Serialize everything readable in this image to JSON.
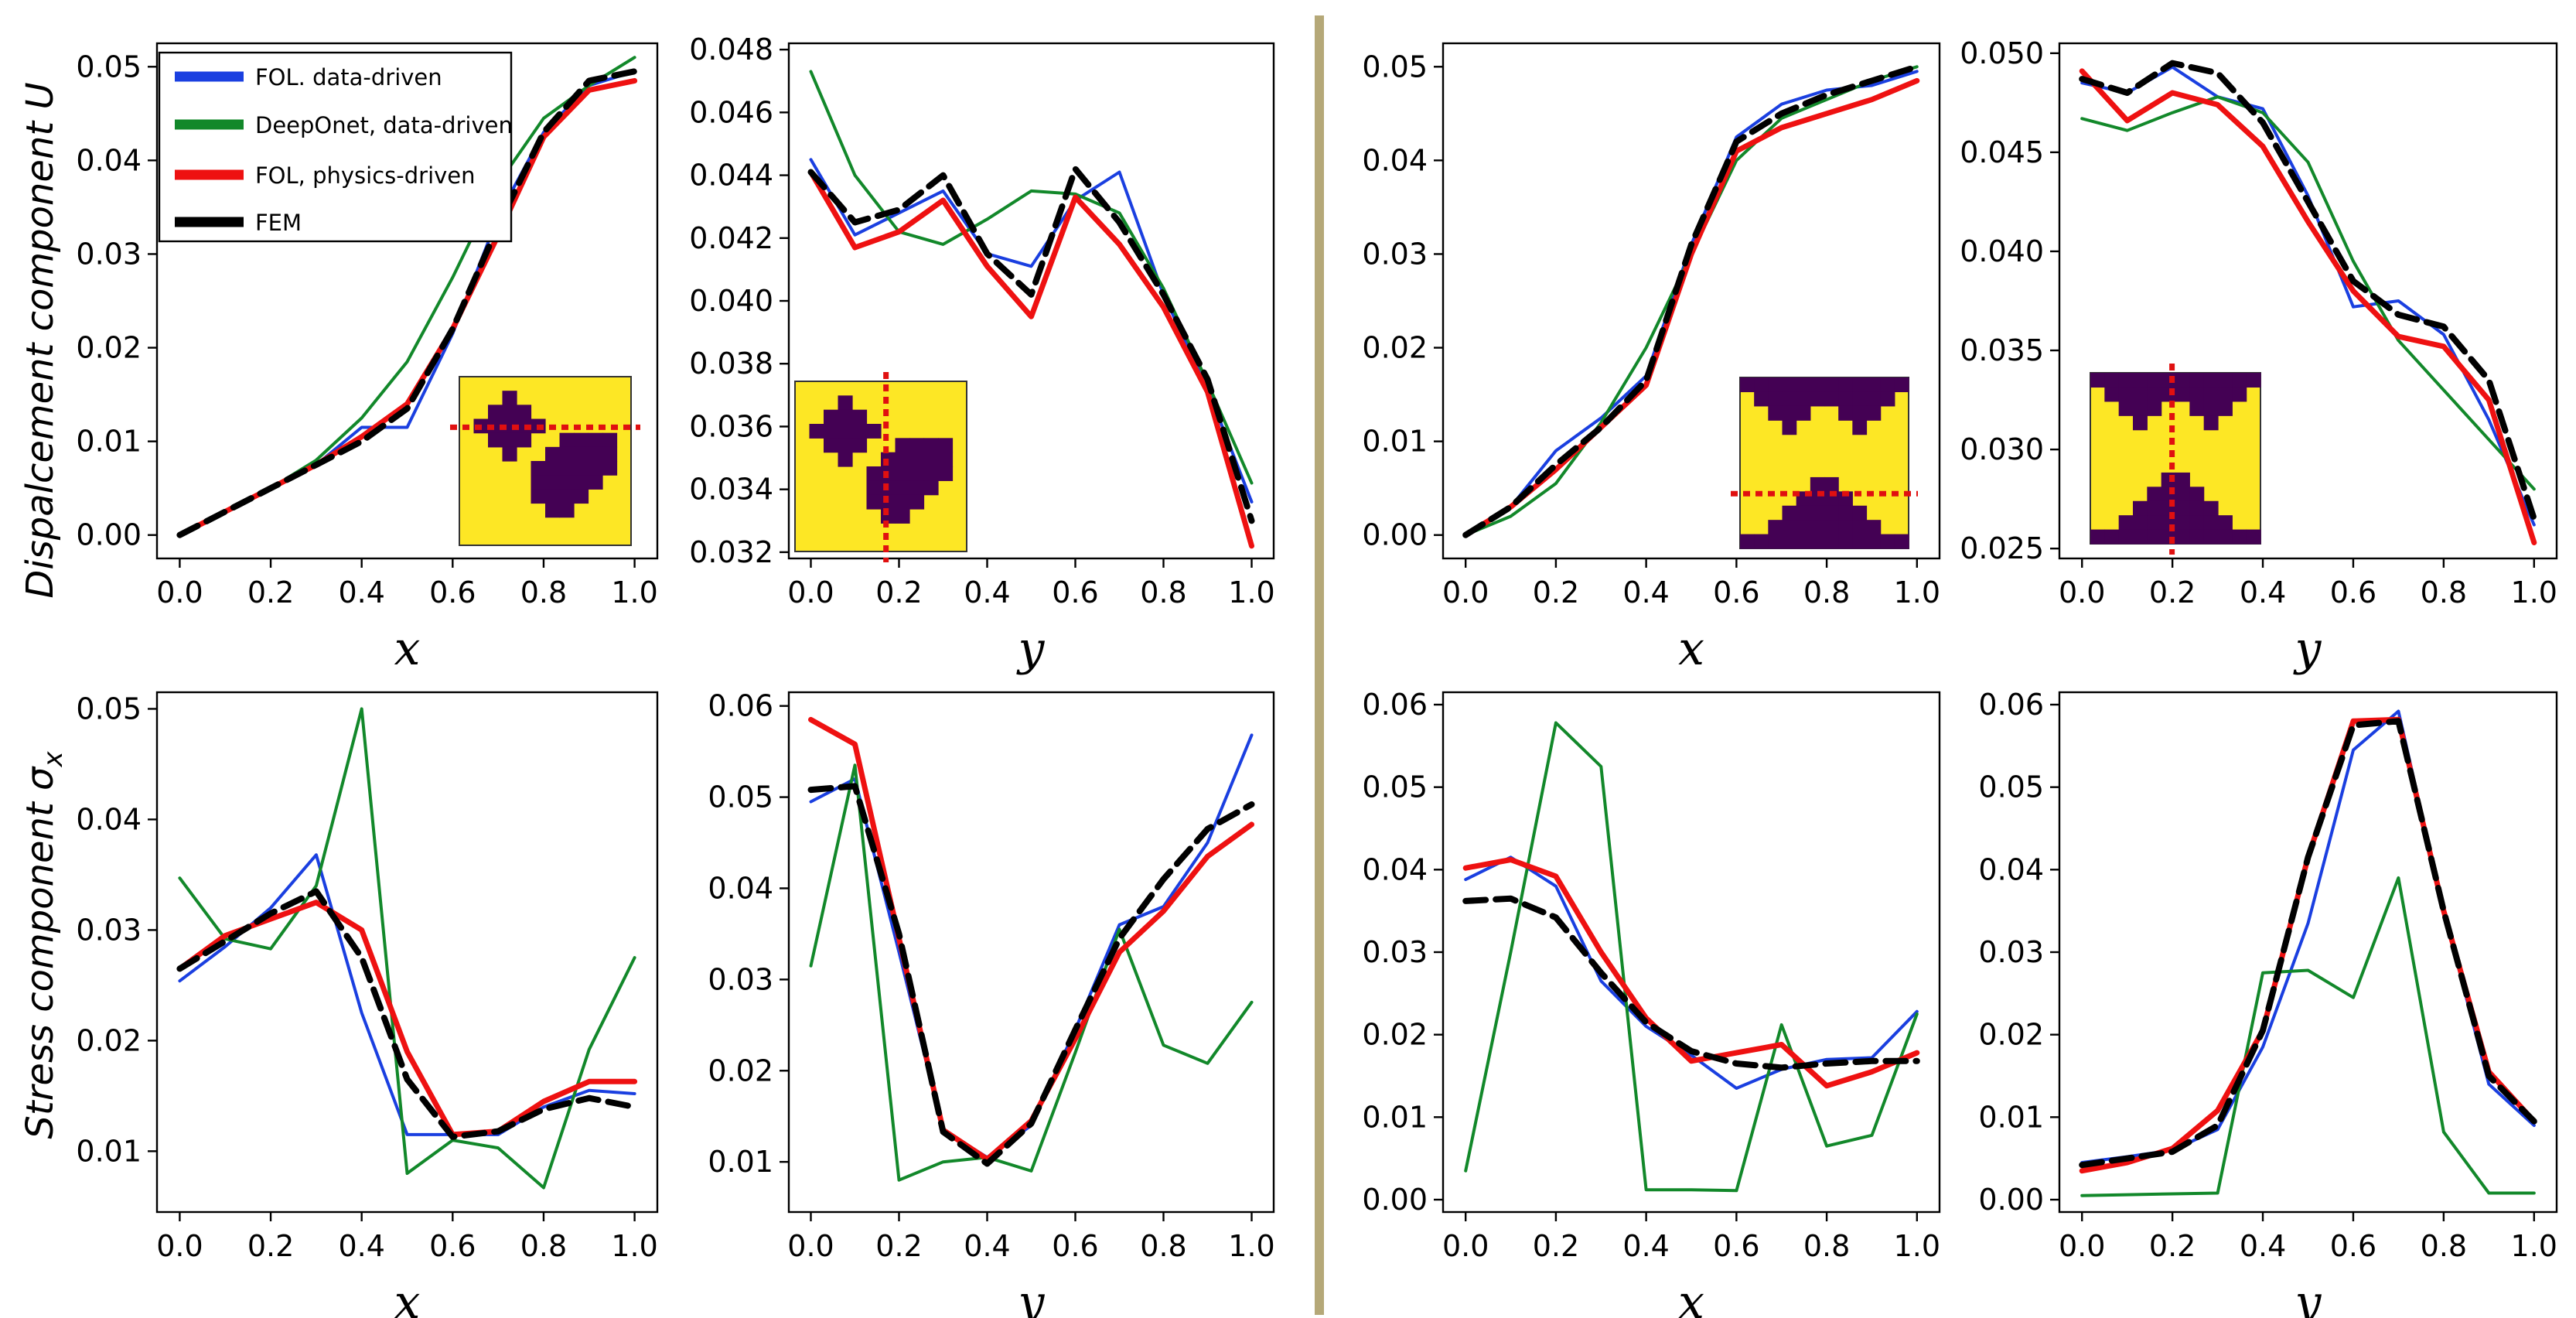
{
  "row_labels": {
    "top": "Dispalcement component U",
    "bottom_prefix": "Stress component σ",
    "bottom_subscript": "x"
  },
  "legend": [
    {
      "label": "FOL. data-driven",
      "color": "#1a3fe0"
    },
    {
      "label": "DeepOnet, data-driven",
      "color": "#12882a"
    },
    {
      "label": "FOL, physics-driven",
      "color": "#ee1111"
    },
    {
      "label": "FEM",
      "color": "#000000"
    }
  ],
  "colors": {
    "fol_data": "#1a3fe0",
    "deeponet": "#12882a",
    "fol_physics": "#ee1111",
    "fem": "#000000",
    "divider": "#b5a878",
    "inset_yellow": "#fde725",
    "inset_purple": "#440154",
    "inset_cut": "#e01010"
  },
  "chart_data": [
    {
      "type": "line",
      "id": "u-x-1",
      "xlabel": "x",
      "ylabel": "Dispalcement component U",
      "xlim": [
        -0.05,
        1.05
      ],
      "ylim": [
        -0.0025,
        0.0525
      ],
      "xticks": [
        "0.0",
        "0.2",
        "0.4",
        "0.6",
        "0.8",
        "1.0"
      ],
      "yticks": [
        "0.00",
        "0.01",
        "0.02",
        "0.03",
        "0.04",
        "0.05"
      ],
      "x": [
        0,
        0.1,
        0.2,
        0.3,
        0.4,
        0.5,
        0.6,
        0.7,
        0.8,
        0.9,
        1.0
      ],
      "series": [
        {
          "name": "FOL. data-driven",
          "values": [
            0,
            0.0025,
            0.005,
            0.0075,
            0.0115,
            0.0115,
            0.0215,
            0.034,
            0.043,
            0.048,
            0.0495
          ]
        },
        {
          "name": "DeepOnet, data-driven",
          "values": [
            0,
            0.0025,
            0.005,
            0.008,
            0.0125,
            0.0185,
            0.0275,
            0.0375,
            0.0445,
            0.048,
            0.051
          ]
        },
        {
          "name": "FOL, physics-driven",
          "values": [
            0,
            0.0025,
            0.005,
            0.0075,
            0.0105,
            0.014,
            0.022,
            0.032,
            0.0425,
            0.0475,
            0.0485
          ]
        },
        {
          "name": "FEM",
          "values": [
            0,
            0.0025,
            0.005,
            0.0075,
            0.01,
            0.0135,
            0.022,
            0.033,
            0.043,
            0.0485,
            0.0495
          ]
        }
      ],
      "inset": {
        "type": "circles",
        "cut": "horizontal",
        "cut_position": 0.3
      }
    },
    {
      "type": "line",
      "id": "u-y-1",
      "xlabel": "y",
      "ylabel": "",
      "xlim": [
        -0.05,
        1.05
      ],
      "ylim": [
        0.0318,
        0.0482
      ],
      "xticks": [
        "0.0",
        "0.2",
        "0.4",
        "0.6",
        "0.8",
        "1.0"
      ],
      "yticks": [
        "0.032",
        "0.034",
        "0.036",
        "0.038",
        "0.040",
        "0.042",
        "0.044",
        "0.046",
        "0.048"
      ],
      "x": [
        0,
        0.1,
        0.2,
        0.3,
        0.4,
        0.5,
        0.6,
        0.7,
        0.8,
        0.9,
        1.0
      ],
      "series": [
        {
          "name": "FOL. data-driven",
          "values": [
            0.0445,
            0.0421,
            0.0428,
            0.0435,
            0.0415,
            0.0411,
            0.0432,
            0.0441,
            0.0402,
            0.0372,
            0.0336
          ]
        },
        {
          "name": "DeepOnet, data-driven",
          "values": [
            0.0473,
            0.044,
            0.0422,
            0.0418,
            0.0426,
            0.0435,
            0.0434,
            0.0428,
            0.0404,
            0.0374,
            0.0342
          ]
        },
        {
          "name": "FOL, physics-driven",
          "values": [
            0.0441,
            0.0417,
            0.0422,
            0.0432,
            0.0411,
            0.0395,
            0.0433,
            0.0418,
            0.0398,
            0.0371,
            0.0322
          ]
        },
        {
          "name": "FEM",
          "values": [
            0.0441,
            0.0425,
            0.0429,
            0.044,
            0.0415,
            0.0402,
            0.0442,
            0.0425,
            0.0402,
            0.0375,
            0.033
          ]
        }
      ],
      "inset": {
        "type": "circles",
        "cut": "vertical",
        "cut_position": 0.78
      }
    },
    {
      "type": "line",
      "id": "u-x-2",
      "xlabel": "x",
      "ylabel": "",
      "xlim": [
        -0.05,
        1.05
      ],
      "ylim": [
        -0.0025,
        0.0525
      ],
      "xticks": [
        "0.0",
        "0.2",
        "0.4",
        "0.6",
        "0.8",
        "1.0"
      ],
      "yticks": [
        "0.00",
        "0.01",
        "0.02",
        "0.03",
        "0.04",
        "0.05"
      ],
      "x": [
        0,
        0.1,
        0.2,
        0.3,
        0.4,
        0.5,
        0.6,
        0.7,
        0.8,
        0.9,
        1.0
      ],
      "series": [
        {
          "name": "FOL. data-driven",
          "values": [
            0,
            0.003,
            0.009,
            0.0125,
            0.017,
            0.031,
            0.0425,
            0.046,
            0.0475,
            0.048,
            0.0495
          ]
        },
        {
          "name": "DeepOnet, data-driven",
          "values": [
            0,
            0.002,
            0.0055,
            0.012,
            0.02,
            0.03,
            0.04,
            0.0445,
            0.0465,
            0.0485,
            0.05
          ]
        },
        {
          "name": "FOL, physics-driven",
          "values": [
            0,
            0.003,
            0.007,
            0.0115,
            0.016,
            0.03,
            0.041,
            0.0435,
            0.045,
            0.0465,
            0.0485
          ]
        },
        {
          "name": "FEM",
          "values": [
            0,
            0.003,
            0.0075,
            0.0115,
            0.0165,
            0.031,
            0.042,
            0.045,
            0.047,
            0.0485,
            0.05
          ]
        }
      ],
      "inset": {
        "type": "bowtie",
        "cut": "horizontal",
        "cut_position": 0.68
      }
    },
    {
      "type": "line",
      "id": "u-y-2",
      "xlabel": "y",
      "ylabel": "",
      "xlim": [
        -0.05,
        1.05
      ],
      "ylim": [
        0.0245,
        0.0505
      ],
      "xticks": [
        "0.0",
        "0.2",
        "0.4",
        "0.6",
        "0.8",
        "1.0"
      ],
      "yticks": [
        "0.025",
        "0.030",
        "0.035",
        "0.040",
        "0.045",
        "0.050"
      ],
      "x": [
        0,
        0.1,
        0.2,
        0.3,
        0.4,
        0.5,
        0.6,
        0.7,
        0.8,
        0.9,
        1.0
      ],
      "series": [
        {
          "name": "FOL. data-driven",
          "values": [
            0.0485,
            0.048,
            0.0493,
            0.0478,
            0.0472,
            0.0428,
            0.0372,
            0.0375,
            0.0358,
            0.0315,
            0.0262
          ]
        },
        {
          "name": "DeepOnet, data-driven",
          "values": [
            0.0467,
            0.0461,
            0.047,
            0.0478,
            0.047,
            0.0445,
            0.0395,
            0.0355,
            0.033,
            0.0305,
            0.028
          ]
        },
        {
          "name": "FOL, physics-driven",
          "values": [
            0.0491,
            0.0466,
            0.048,
            0.0474,
            0.0453,
            0.0415,
            0.038,
            0.0357,
            0.0352,
            0.0325,
            0.0253
          ]
        },
        {
          "name": "FEM",
          "values": [
            0.0487,
            0.048,
            0.0495,
            0.049,
            0.0465,
            0.0425,
            0.0385,
            0.0368,
            0.0362,
            0.0335,
            0.0265
          ]
        }
      ],
      "inset": {
        "type": "bowtie",
        "cut": "vertical",
        "cut_position": 0.73
      }
    },
    {
      "type": "line",
      "id": "s-x-1",
      "xlabel": "x",
      "ylabel": "Stress component σx",
      "xlim": [
        -0.05,
        1.05
      ],
      "ylim": [
        0.0045,
        0.0515
      ],
      "xticks": [
        "0.0",
        "0.2",
        "0.4",
        "0.6",
        "0.8",
        "1.0"
      ],
      "yticks": [
        "0.01",
        "0.02",
        "0.03",
        "0.04",
        "0.05"
      ],
      "x": [
        0,
        0.1,
        0.2,
        0.3,
        0.4,
        0.5,
        0.6,
        0.7,
        0.8,
        0.9,
        1.0
      ],
      "series": [
        {
          "name": "FOL. data-driven",
          "values": [
            0.0254,
            0.0285,
            0.032,
            0.0368,
            0.0225,
            0.0115,
            0.0115,
            0.0115,
            0.014,
            0.0155,
            0.0152
          ]
        },
        {
          "name": "DeepOnet, data-driven",
          "values": [
            0.0347,
            0.0292,
            0.0283,
            0.034,
            0.05,
            0.008,
            0.011,
            0.0103,
            0.0067,
            0.0192,
            0.0275
          ]
        },
        {
          "name": "FOL, physics-driven",
          "values": [
            0.0265,
            0.0295,
            0.031,
            0.0325,
            0.03,
            0.019,
            0.0115,
            0.0118,
            0.0145,
            0.0163,
            0.0163
          ]
        },
        {
          "name": "FEM",
          "values": [
            0.0265,
            0.029,
            0.0315,
            0.0335,
            0.0275,
            0.0165,
            0.0113,
            0.0118,
            0.0138,
            0.0148,
            0.014
          ]
        }
      ]
    },
    {
      "type": "line",
      "id": "s-y-1",
      "xlabel": "y",
      "ylabel": "",
      "xlim": [
        -0.05,
        1.05
      ],
      "ylim": [
        0.0045,
        0.0615
      ],
      "xticks": [
        "0.0",
        "0.2",
        "0.4",
        "0.6",
        "0.8",
        "1.0"
      ],
      "yticks": [
        "0.01",
        "0.02",
        "0.03",
        "0.04",
        "0.05",
        "0.06"
      ],
      "x": [
        0,
        0.1,
        0.2,
        0.3,
        0.4,
        0.5,
        0.6,
        0.7,
        0.8,
        0.9,
        1.0
      ],
      "series": [
        {
          "name": "FOL. data-driven",
          "values": [
            0.0495,
            0.052,
            0.033,
            0.0135,
            0.0105,
            0.014,
            0.0245,
            0.036,
            0.038,
            0.045,
            0.0568
          ]
        },
        {
          "name": "DeepOnet, data-driven",
          "values": [
            0.0315,
            0.0535,
            0.008,
            0.01,
            0.0105,
            0.009,
            0.022,
            0.0355,
            0.0228,
            0.0208,
            0.0275
          ]
        },
        {
          "name": "FOL, physics-driven",
          "values": [
            0.0585,
            0.0558,
            0.0345,
            0.0135,
            0.0103,
            0.0145,
            0.0235,
            0.033,
            0.0375,
            0.0435,
            0.047
          ]
        },
        {
          "name": "FEM",
          "values": [
            0.0508,
            0.0512,
            0.035,
            0.0133,
            0.0098,
            0.0142,
            0.0245,
            0.0345,
            0.041,
            0.0465,
            0.0492
          ]
        }
      ]
    },
    {
      "type": "line",
      "id": "s-x-2",
      "xlabel": "x",
      "ylabel": "",
      "xlim": [
        -0.05,
        1.05
      ],
      "ylim": [
        -0.0015,
        0.0615
      ],
      "xticks": [
        "0.0",
        "0.2",
        "0.4",
        "0.6",
        "0.8",
        "1.0"
      ],
      "yticks": [
        "0.00",
        "0.01",
        "0.02",
        "0.03",
        "0.04",
        "0.05",
        "0.06"
      ],
      "x": [
        0,
        0.1,
        0.2,
        0.3,
        0.4,
        0.5,
        0.6,
        0.7,
        0.8,
        0.9,
        1.0
      ],
      "series": [
        {
          "name": "FOL. data-driven",
          "values": [
            0.0388,
            0.0415,
            0.038,
            0.0265,
            0.021,
            0.0175,
            0.0135,
            0.0158,
            0.017,
            0.0172,
            0.0228
          ]
        },
        {
          "name": "DeepOnet, data-driven",
          "values": [
            0.0035,
            0.03,
            0.0578,
            0.0525,
            0.0012,
            0.0012,
            0.0011,
            0.0212,
            0.0065,
            0.0078,
            0.0225
          ]
        },
        {
          "name": "FOL, physics-driven",
          "values": [
            0.0402,
            0.0412,
            0.0392,
            0.03,
            0.022,
            0.0168,
            0.0178,
            0.0188,
            0.0138,
            0.0155,
            0.0178
          ]
        },
        {
          "name": "FEM",
          "values": [
            0.0362,
            0.0365,
            0.0342,
            0.0275,
            0.0215,
            0.018,
            0.0165,
            0.016,
            0.0165,
            0.0168,
            0.0168
          ]
        }
      ]
    },
    {
      "type": "line",
      "id": "s-y-2",
      "xlabel": "y",
      "ylabel": "",
      "xlim": [
        -0.05,
        1.05
      ],
      "ylim": [
        -0.0015,
        0.0615
      ],
      "xticks": [
        "0.0",
        "0.2",
        "0.4",
        "0.6",
        "0.8",
        "1.0"
      ],
      "yticks": [
        "0.00",
        "0.01",
        "0.02",
        "0.03",
        "0.04",
        "0.05",
        "0.06"
      ],
      "x": [
        0,
        0.1,
        0.2,
        0.3,
        0.4,
        0.5,
        0.6,
        0.7,
        0.8,
        0.9,
        1.0
      ],
      "series": [
        {
          "name": "FOL. data-driven",
          "values": [
            0.0045,
            0.0052,
            0.006,
            0.0085,
            0.0185,
            0.0335,
            0.0545,
            0.0592,
            0.035,
            0.014,
            0.009
          ]
        },
        {
          "name": "DeepOnet, data-driven",
          "values": [
            0.0005,
            0.0006,
            0.0007,
            0.0008,
            0.0275,
            0.0278,
            0.0245,
            0.039,
            0.0082,
            0.0008,
            0.0008
          ]
        },
        {
          "name": "FOL, physics-driven",
          "values": [
            0.0035,
            0.0045,
            0.0062,
            0.0108,
            0.0205,
            0.0415,
            0.058,
            0.0582,
            0.035,
            0.0155,
            0.0095
          ]
        },
        {
          "name": "FEM",
          "values": [
            0.0042,
            0.005,
            0.0058,
            0.009,
            0.0205,
            0.0415,
            0.0575,
            0.058,
            0.035,
            0.015,
            0.0095
          ]
        }
      ]
    }
  ]
}
